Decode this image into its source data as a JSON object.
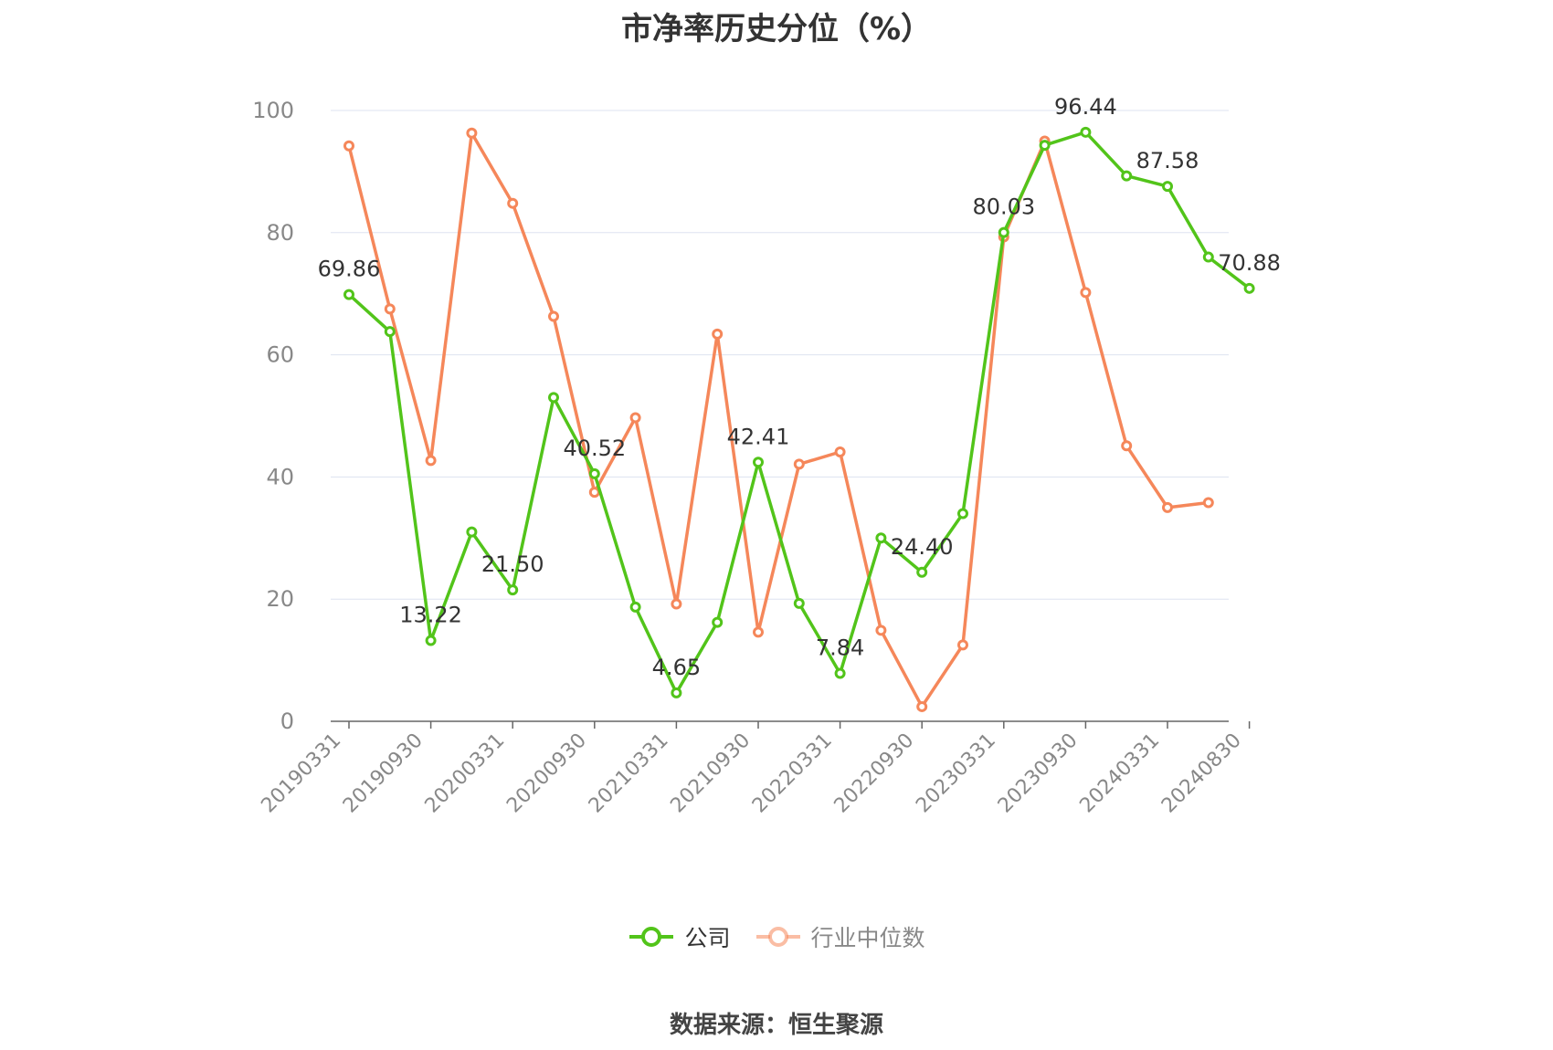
{
  "title": "市净率历史分位（%）",
  "source": "数据来源：恒生聚源",
  "legend": {
    "company": "公司",
    "industry": "行业中位数"
  },
  "colors": {
    "company": "#52c41a",
    "industry": "#f5875a",
    "grid": "#dde3f0",
    "axis": "#666666",
    "tick_text": "#888888",
    "label_text": "#333333"
  },
  "chart_data": {
    "type": "line",
    "ylim": [
      0,
      100
    ],
    "yticks": [
      0,
      20,
      40,
      60,
      80,
      100
    ],
    "grid": true,
    "legend_position": "bottom",
    "x_labels": [
      "20190331",
      "20190930",
      "20200331",
      "20200930",
      "20210331",
      "20210930",
      "20220331",
      "20220930",
      "20230331",
      "20230930",
      "20240331",
      "20240830"
    ],
    "x": [
      "20190331",
      "20190630",
      "20190930",
      "20191231",
      "20200331",
      "20200630",
      "20200930",
      "20201231",
      "20210331",
      "20210630",
      "20210930",
      "20211231",
      "20220331",
      "20220630",
      "20220930",
      "20221231",
      "20230331",
      "20230630",
      "20230930",
      "20231231",
      "20240331",
      "20240630",
      "20240830"
    ],
    "series": [
      {
        "name": "公司",
        "values": [
          69.86,
          63.8,
          13.22,
          31.0,
          21.5,
          53.0,
          40.52,
          18.7,
          4.65,
          16.2,
          42.41,
          19.3,
          7.84,
          30.0,
          24.4,
          34.0,
          80.03,
          94.3,
          96.44,
          89.3,
          87.58,
          76.0,
          70.88
        ],
        "labels": [
          "69.86",
          "",
          "13.22",
          "",
          "21.50",
          "",
          "40.52",
          "",
          "4.65",
          "",
          "42.41",
          "",
          "7.84",
          "",
          "24.40",
          "",
          "80.03",
          "",
          "96.44",
          "",
          "87.58",
          "",
          "70.88"
        ]
      },
      {
        "name": "行业中位数",
        "values": [
          94.2,
          67.5,
          42.7,
          96.3,
          84.8,
          66.3,
          37.5,
          49.7,
          19.2,
          63.4,
          14.6,
          42.1,
          44.1,
          14.9,
          2.4,
          12.5,
          79.3,
          95.0,
          70.2,
          45.1,
          35.0,
          35.8,
          null
        ]
      }
    ]
  }
}
